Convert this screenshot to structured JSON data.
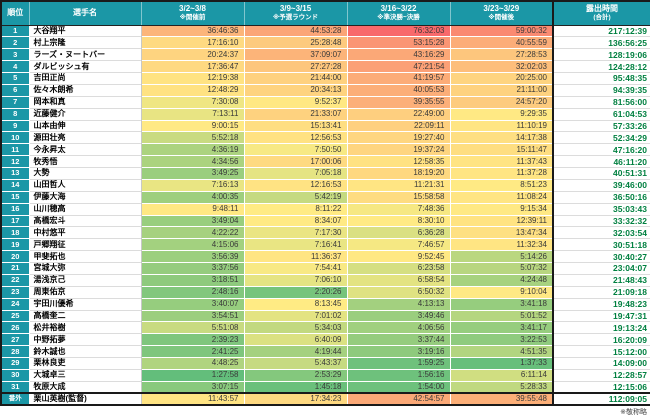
{
  "colors": {
    "header_bg": "#1B97A6",
    "header_text": "#FFFFFF",
    "rank_bg": "#1B97A6",
    "total_text": "#008040",
    "border": "#1A1A1A"
  },
  "chart_data": {
    "type": "table",
    "columns": [
      {
        "label": "順位",
        "sub": ""
      },
      {
        "label": "選手名",
        "sub": ""
      },
      {
        "label": "3/2~3/8",
        "sub": "※開催前"
      },
      {
        "label": "3/9~3/15",
        "sub": "※予選ラウンド"
      },
      {
        "label": "3/16~3/22",
        "sub": "※準決勝~決勝"
      },
      {
        "label": "3/23~3/29",
        "sub": "※開催後"
      },
      {
        "label": "露出時間",
        "sub": "(合計)"
      }
    ],
    "heatmap": {
      "min_color": "#63BE7B",
      "mid_color": "#FFEB84",
      "max_color": "#F8696B",
      "midpoint": "median"
    },
    "rows": [
      {
        "rank": "1",
        "name": "大谷翔平",
        "periods": [
          "36:46:36",
          "44:53:28",
          "76:32:03",
          "59:00:32"
        ],
        "total": "217:12:39"
      },
      {
        "rank": "2",
        "name": "村上宗隆",
        "periods": [
          "17:16:10",
          "25:28:48",
          "53:15:28",
          "40:55:59"
        ],
        "total": "136:56:25"
      },
      {
        "rank": "3",
        "name": "ラーズ・ヌートバー",
        "periods": [
          "20:24:37",
          "37:09:07",
          "43:16:29",
          "27:28:53"
        ],
        "total": "128:19:06"
      },
      {
        "rank": "4",
        "name": "ダルビッシュ有",
        "periods": [
          "17:36:47",
          "27:27:28",
          "47:21:54",
          "32:02:03"
        ],
        "total": "124:28:12"
      },
      {
        "rank": "5",
        "name": "吉田正尚",
        "periods": [
          "12:19:38",
          "21:44:00",
          "41:19:57",
          "20:25:00"
        ],
        "total": "95:48:35"
      },
      {
        "rank": "6",
        "name": "佐々木朗希",
        "periods": [
          "12:48:29",
          "20:34:13",
          "40:05:53",
          "21:11:00"
        ],
        "total": "94:39:35"
      },
      {
        "rank": "7",
        "name": "岡本和真",
        "periods": [
          "7:30:08",
          "9:52:37",
          "39:35:55",
          "24:57:20"
        ],
        "total": "81:56:00"
      },
      {
        "rank": "8",
        "name": "近藤健介",
        "periods": [
          "7:13:11",
          "21:33:07",
          "22:49:00",
          "9:29:35"
        ],
        "total": "61:04:53"
      },
      {
        "rank": "9",
        "name": "山本由伸",
        "periods": [
          "9:00:15",
          "15:13:41",
          "22:09:11",
          "11:10:19"
        ],
        "total": "57:33:26"
      },
      {
        "rank": "10",
        "name": "源田壮亮",
        "periods": [
          "5:52:18",
          "12:56:53",
          "19:27:40",
          "14:17:38"
        ],
        "total": "52:34:29"
      },
      {
        "rank": "11",
        "name": "今永昇太",
        "periods": [
          "4:36:19",
          "7:50:50",
          "19:37:24",
          "15:11:47"
        ],
        "total": "47:16:20"
      },
      {
        "rank": "12",
        "name": "牧秀悟",
        "periods": [
          "4:34:56",
          "17:00:06",
          "12:58:35",
          "11:37:43"
        ],
        "total": "46:11:20"
      },
      {
        "rank": "13",
        "name": "大勢",
        "periods": [
          "3:49:25",
          "7:05:18",
          "18:19:20",
          "11:37:28"
        ],
        "total": "40:51:31"
      },
      {
        "rank": "14",
        "name": "山田哲人",
        "periods": [
          "7:16:13",
          "12:16:53",
          "11:21:31",
          "8:51:23"
        ],
        "total": "39:46:00"
      },
      {
        "rank": "15",
        "name": "伊藤大海",
        "periods": [
          "4:00:35",
          "5:42:19",
          "15:58:58",
          "11:08:24"
        ],
        "total": "36:50:16"
      },
      {
        "rank": "16",
        "name": "山川穂高",
        "periods": [
          "9:48:11",
          "8:11:22",
          "7:48:36",
          "9:15:34"
        ],
        "total": "35:03:43"
      },
      {
        "rank": "17",
        "name": "髙橋宏斗",
        "periods": [
          "3:49:04",
          "8:34:07",
          "8:30:10",
          "12:39:11"
        ],
        "total": "33:32:32"
      },
      {
        "rank": "18",
        "name": "中村悠平",
        "periods": [
          "4:22:22",
          "7:17:30",
          "6:36:28",
          "13:47:34"
        ],
        "total": "32:03:54"
      },
      {
        "rank": "19",
        "name": "戸郷翔征",
        "periods": [
          "4:15:06",
          "7:16:41",
          "7:46:57",
          "11:32:34"
        ],
        "total": "30:51:18"
      },
      {
        "rank": "20",
        "name": "甲斐拓也",
        "periods": [
          "3:56:39",
          "11:36:37",
          "9:52:45",
          "5:14:26"
        ],
        "total": "30:40:27"
      },
      {
        "rank": "21",
        "name": "宮城大弥",
        "periods": [
          "3:37:56",
          "7:54:41",
          "6:23:58",
          "5:07:32"
        ],
        "total": "23:04:07"
      },
      {
        "rank": "22",
        "name": "湯浅京己",
        "periods": [
          "3:18:51",
          "7:06:10",
          "6:58:54",
          "4:24:48"
        ],
        "total": "21:48:43"
      },
      {
        "rank": "23",
        "name": "周東佑京",
        "periods": [
          "2:48:16",
          "2:20:26",
          "6:50:32",
          "9:10:04"
        ],
        "total": "21:09:18"
      },
      {
        "rank": "24",
        "name": "宇田川優希",
        "periods": [
          "3:40:07",
          "8:13:45",
          "4:13:13",
          "3:41:18"
        ],
        "total": "19:48:23"
      },
      {
        "rank": "25",
        "name": "高橋奎二",
        "periods": [
          "3:54:51",
          "7:01:02",
          "3:49:46",
          "5:01:52"
        ],
        "total": "19:47:31"
      },
      {
        "rank": "26",
        "name": "松井裕樹",
        "periods": [
          "5:51:08",
          "5:34:03",
          "4:06:56",
          "3:41:17"
        ],
        "total": "19:13:24"
      },
      {
        "rank": "27",
        "name": "中野拓夢",
        "periods": [
          "2:39:23",
          "6:40:09",
          "3:37:44",
          "3:22:53"
        ],
        "total": "16:20:09"
      },
      {
        "rank": "28",
        "name": "鈴木誠也",
        "periods": [
          "2:41:25",
          "4:19:44",
          "3:19:16",
          "4:51:35"
        ],
        "total": "15:12:00"
      },
      {
        "rank": "29",
        "name": "栗林良吏",
        "periods": [
          "4:48:25",
          "5:43:37",
          "1:59:25",
          "1:37:33"
        ],
        "total": "14:09:00"
      },
      {
        "rank": "30",
        "name": "大城卓三",
        "periods": [
          "1:27:58",
          "2:53:29",
          "1:56:16",
          "6:11:14"
        ],
        "total": "12:28:57"
      },
      {
        "rank": "31",
        "name": "牧原大成",
        "periods": [
          "3:07:15",
          "1:45:18",
          "1:54:00",
          "5:28:33"
        ],
        "total": "12:15:06"
      },
      {
        "rank": "番外",
        "name": "栗山英樹(監督)",
        "periods": [
          "11:43:57",
          "17:34:23",
          "42:54:57",
          "39:55:48"
        ],
        "total": "112:09:05",
        "extra": true
      }
    ],
    "footnote": "※敬称略"
  }
}
